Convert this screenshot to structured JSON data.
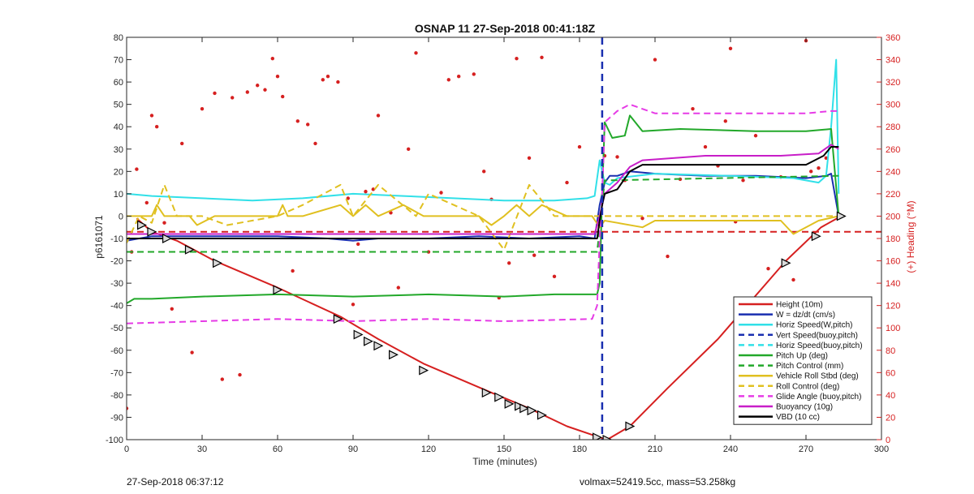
{
  "chart_data": {
    "type": "line",
    "title": "OSNAP 11 27-Sep-2018 00:41:18Z",
    "xlabel": "Time (minutes)",
    "ylabel": "p6161071",
    "y2label": "(+) Heading (°M)",
    "xlim": [
      0,
      300
    ],
    "ylim": [
      -100,
      80
    ],
    "y2lim": [
      0,
      360
    ],
    "xticks": [
      0,
      30,
      60,
      90,
      120,
      150,
      180,
      210,
      240,
      270,
      300
    ],
    "yticks": [
      -100,
      -90,
      -80,
      -70,
      -60,
      -50,
      -40,
      -30,
      -20,
      -10,
      0,
      10,
      20,
      30,
      40,
      50,
      60,
      70,
      80
    ],
    "y2ticks": [
      0,
      20,
      40,
      60,
      80,
      100,
      120,
      140,
      160,
      180,
      200,
      220,
      240,
      260,
      280,
      300,
      320,
      340,
      360
    ],
    "grid": false,
    "legend_position": "bottom-right",
    "vline_x": 189,
    "series": [
      {
        "name": "Height (10m)",
        "color": "#d62020",
        "style": "solid",
        "width": 2,
        "x": [
          4,
          10,
          20,
          35,
          60,
          85,
          100,
          118,
          145,
          160,
          175,
          188,
          191,
          200,
          215,
          235,
          262,
          276,
          284
        ],
        "y": [
          -1,
          -7,
          -11,
          -20,
          -32,
          -45,
          -55,
          -66,
          -79,
          -86,
          -94,
          -99,
          -100,
          -94,
          -77,
          -55,
          -20,
          -5,
          0
        ]
      },
      {
        "name": "W = dz/dt (cm/s)",
        "color": "#1a2fb0",
        "style": "solid",
        "width": 2,
        "x": [
          0,
          10,
          30,
          60,
          80,
          90,
          100,
          120,
          140,
          160,
          180,
          186,
          188,
          190,
          192,
          195,
          200,
          210,
          230,
          250,
          270,
          278,
          280,
          283
        ],
        "y": [
          -11,
          -9,
          -9,
          -9,
          -10,
          -11,
          -10,
          -10,
          -9,
          -10,
          -9,
          -10,
          5,
          15,
          18,
          18,
          20,
          19,
          18,
          18,
          17,
          18,
          19,
          0
        ]
      },
      {
        "name": "Horiz Speed(W,pitch)",
        "color": "#31e0e8",
        "style": "solid",
        "width": 2,
        "x": [
          0,
          10,
          30,
          50,
          70,
          90,
          110,
          130,
          150,
          170,
          183,
          186,
          188,
          190,
          192,
          195,
          210,
          240,
          265,
          275,
          278,
          280,
          282,
          283
        ],
        "y": [
          10,
          9,
          8,
          7,
          8,
          10,
          9,
          8,
          7,
          7,
          8,
          9,
          25,
          15,
          14,
          17,
          19,
          18,
          17,
          15,
          18,
          40,
          70,
          10
        ]
      },
      {
        "name": "Vert Speed(buoy,pitch)",
        "color": "#1a2fb0",
        "style": "dashed",
        "width": 2,
        "x": [],
        "y": []
      },
      {
        "name": "Horiz Speed(buoy,pitch)",
        "color": "#31e0e8",
        "style": "dashed",
        "width": 2,
        "x": [],
        "y": []
      },
      {
        "name": "Pitch Up (deg)",
        "color": "#22a82a",
        "style": "solid",
        "width": 2,
        "x": [
          0,
          3,
          10,
          30,
          60,
          90,
          120,
          150,
          170,
          185,
          187,
          188,
          189,
          190,
          193,
          198,
          200,
          205,
          220,
          250,
          270,
          280,
          283
        ],
        "y": [
          -39,
          -37,
          -37,
          -36,
          -35,
          -36,
          -35,
          -36,
          -35,
          -35,
          -35,
          -30,
          10,
          42,
          35,
          36,
          45,
          38,
          39,
          38,
          38,
          39,
          0
        ]
      },
      {
        "name": "Pitch Control (mm)",
        "color": "#22a82a",
        "style": "dashed",
        "width": 2,
        "x": [
          0,
          187,
          189,
          190,
          282,
          283
        ],
        "y": [
          -16,
          -16,
          5,
          16,
          18,
          18
        ]
      },
      {
        "name": "Vehicle Roll Stbd (deg)",
        "color": "#e0c020",
        "style": "solid",
        "width": 2,
        "x": [
          0,
          10,
          12,
          15,
          25,
          28,
          35,
          40,
          60,
          62,
          64,
          70,
          85,
          90,
          95,
          100,
          110,
          118,
          140,
          145,
          150,
          155,
          160,
          165,
          175,
          185,
          188,
          190,
          195,
          205,
          210,
          240,
          260,
          265,
          275,
          283
        ],
        "y": [
          0,
          0,
          5,
          0,
          0,
          -4,
          0,
          0,
          0,
          5,
          0,
          0,
          5,
          0,
          5,
          0,
          5,
          0,
          0,
          -4,
          0,
          5,
          0,
          5,
          0,
          0,
          -5,
          -2,
          -3,
          -5,
          -2,
          -2,
          -2,
          -8,
          -2,
          0
        ]
      },
      {
        "name": "Roll Control (deg)",
        "color": "#e0c020",
        "style": "dashed",
        "width": 2,
        "x": [
          0,
          5,
          10,
          15,
          20,
          30,
          40,
          60,
          70,
          85,
          90,
          100,
          115,
          120,
          140,
          150,
          160,
          170,
          185,
          190,
          200,
          283
        ],
        "y": [
          -12,
          0,
          -3,
          14,
          0,
          0,
          -4,
          0,
          5,
          14,
          0,
          14,
          0,
          10,
          0,
          -15,
          14,
          0,
          0,
          0,
          0,
          0
        ]
      },
      {
        "name": "Glide Angle (buoy,pitch)",
        "color": "#e63be6",
        "style": "dashed",
        "width": 2,
        "x": [
          0,
          30,
          60,
          90,
          120,
          150,
          185,
          187,
          188,
          189,
          190,
          195,
          200,
          210,
          240,
          270,
          280,
          283
        ],
        "y": [
          -48,
          -47,
          -46,
          -47,
          -46,
          -47,
          -46,
          -40,
          -10,
          10,
          42,
          47,
          50,
          46,
          46,
          46,
          47,
          47
        ]
      },
      {
        "name": "Buoyancy (10g)",
        "color": "#c81ec8",
        "style": "solid",
        "width": 2,
        "x": [
          0,
          30,
          60,
          90,
          120,
          150,
          186,
          188,
          189,
          190,
          195,
          200,
          205,
          230,
          260,
          275,
          280,
          283
        ],
        "y": [
          -8,
          -8,
          -8,
          -8,
          -8,
          -8,
          -8,
          0,
          5,
          10,
          15,
          22,
          25,
          27,
          27,
          28,
          32,
          30
        ]
      },
      {
        "name": "VBD (10 cc)",
        "color": "#000000",
        "style": "solid",
        "width": 2,
        "x": [
          0,
          30,
          60,
          90,
          120,
          150,
          187,
          188,
          189,
          190,
          195,
          200,
          205,
          270,
          277,
          280,
          283
        ],
        "y": [
          -10,
          -10,
          -10,
          -10,
          -10,
          -10,
          -10,
          -2,
          5,
          10,
          12,
          20,
          23,
          23,
          27,
          31,
          31
        ]
      }
    ],
    "constant_series": [
      {
        "color": "#d62020",
        "style": "dashed",
        "y": -7
      }
    ],
    "heading_points": {
      "color": "#d62020",
      "x": [
        0,
        2,
        4,
        8,
        10,
        12,
        15,
        18,
        22,
        26,
        30,
        35,
        38,
        42,
        45,
        48,
        52,
        55,
        58,
        60,
        62,
        66,
        68,
        72,
        75,
        78,
        80,
        84,
        88,
        90,
        92,
        95,
        98,
        100,
        105,
        108,
        112,
        115,
        120,
        125,
        128,
        132,
        138,
        142,
        145,
        148,
        152,
        155,
        160,
        162,
        165,
        170,
        175,
        180,
        190,
        195,
        198,
        205,
        210,
        215,
        220,
        225,
        230,
        235,
        238,
        240,
        242,
        245,
        250,
        255,
        260,
        265,
        270,
        272,
        275,
        278
      ],
      "y": [
        28,
        168,
        242,
        212,
        290,
        280,
        194,
        117,
        265,
        78,
        296,
        310,
        54,
        306,
        58,
        311,
        317,
        313,
        341,
        325,
        307,
        151,
        285,
        282,
        265,
        322,
        325,
        320,
        216,
        121,
        175,
        222,
        224,
        290,
        203,
        136,
        260,
        346,
        168,
        221,
        322,
        325,
        327,
        240,
        215,
        127,
        158,
        341,
        252,
        165,
        342,
        146,
        230,
        262,
        254,
        253,
        232,
        198,
        340,
        164,
        233,
        296,
        262,
        245,
        285,
        350,
        195,
        232,
        272,
        153,
        235,
        143,
        357,
        240,
        243,
        252
      ]
    },
    "markers": {
      "color": "#000000",
      "x": [
        6,
        10,
        16,
        25,
        36,
        60,
        84,
        92,
        96,
        100,
        106,
        118,
        143,
        148,
        152,
        156,
        158,
        161,
        165,
        187,
        191,
        200,
        262,
        274,
        284
      ],
      "y": [
        -4,
        -7,
        -10,
        -15,
        -21,
        -33,
        -46,
        -53,
        -56,
        -58,
        -62,
        -69,
        -79,
        -81,
        -84,
        -85,
        -86,
        -87,
        -89,
        -99,
        -100,
        -94,
        -21,
        -9,
        0
      ]
    }
  },
  "footer": {
    "timestamp": "27-Sep-2018 06:37:12",
    "info": "volmax=52419.5cc, mass=53.258kg"
  }
}
